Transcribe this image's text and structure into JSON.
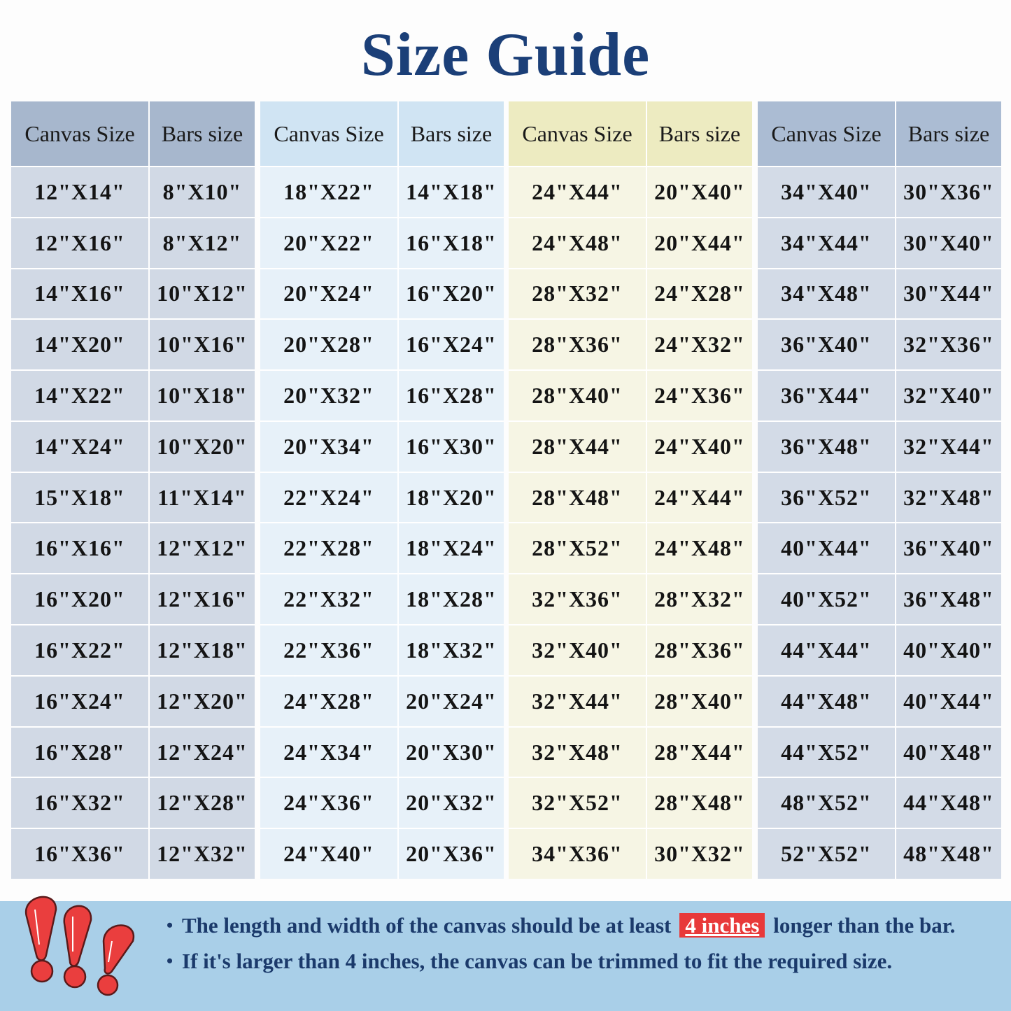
{
  "title": "Size Guide",
  "tables": [
    {
      "headers": [
        "Canvas Size",
        "Bars size"
      ],
      "colors": {
        "header": "#a7b7cd",
        "cell": "#d1d9e5"
      },
      "rows": [
        [
          "12\"X14\"",
          "8\"X10\""
        ],
        [
          "12\"X16\"",
          "8\"X12\""
        ],
        [
          "14\"X16\"",
          "10\"X12\""
        ],
        [
          "14\"X20\"",
          "10\"X16\""
        ],
        [
          "14\"X22\"",
          "10\"X18\""
        ],
        [
          "14\"X24\"",
          "10\"X20\""
        ],
        [
          "15\"X18\"",
          "11\"X14\""
        ],
        [
          "16\"X16\"",
          "12\"X12\""
        ],
        [
          "16\"X20\"",
          "12\"X16\""
        ],
        [
          "16\"X22\"",
          "12\"X18\""
        ],
        [
          "16\"X24\"",
          "12\"X20\""
        ],
        [
          "16\"X28\"",
          "12\"X24\""
        ],
        [
          "16\"X32\"",
          "12\"X28\""
        ],
        [
          "16\"X36\"",
          "12\"X32\""
        ]
      ]
    },
    {
      "headers": [
        "Canvas Size",
        "Bars size"
      ],
      "colors": {
        "header": "#d0e4f3",
        "cell": "#e7f1f9"
      },
      "rows": [
        [
          "18\"X22\"",
          "14\"X18\""
        ],
        [
          "20\"X22\"",
          "16\"X18\""
        ],
        [
          "20\"X24\"",
          "16\"X20\""
        ],
        [
          "20\"X28\"",
          "16\"X24\""
        ],
        [
          "20\"X32\"",
          "16\"X28\""
        ],
        [
          "20\"X34\"",
          "16\"X30\""
        ],
        [
          "22\"X24\"",
          "18\"X20\""
        ],
        [
          "22\"X28\"",
          "18\"X24\""
        ],
        [
          "22\"X32\"",
          "18\"X28\""
        ],
        [
          "22\"X36\"",
          "18\"X32\""
        ],
        [
          "24\"X28\"",
          "20\"X24\""
        ],
        [
          "24\"X34\"",
          "20\"X30\""
        ],
        [
          "24\"X36\"",
          "20\"X32\""
        ],
        [
          "24\"X40\"",
          "20\"X36\""
        ]
      ]
    },
    {
      "headers": [
        "Canvas Size",
        "Bars size"
      ],
      "colors": {
        "header": "#edebc1",
        "cell": "#f6f5e4"
      },
      "rows": [
        [
          "24\"X44\"",
          "20\"X40\""
        ],
        [
          "24\"X48\"",
          "20\"X44\""
        ],
        [
          "28\"X32\"",
          "24\"X28\""
        ],
        [
          "28\"X36\"",
          "24\"X32\""
        ],
        [
          "28\"X40\"",
          "24\"X36\""
        ],
        [
          "28\"X44\"",
          "24\"X40\""
        ],
        [
          "28\"X48\"",
          "24\"X44\""
        ],
        [
          "28\"X52\"",
          "24\"X48\""
        ],
        [
          "32\"X36\"",
          "28\"X32\""
        ],
        [
          "32\"X40\"",
          "28\"X36\""
        ],
        [
          "32\"X44\"",
          "28\"X40\""
        ],
        [
          "32\"X48\"",
          "28\"X44\""
        ],
        [
          "32\"X52\"",
          "28\"X48\""
        ],
        [
          "34\"X36\"",
          "30\"X32\""
        ]
      ]
    },
    {
      "headers": [
        "Canvas Size",
        "Bars size"
      ],
      "colors": {
        "header": "#abbcd3",
        "cell": "#d3dbe7"
      },
      "rows": [
        [
          "34\"X40\"",
          "30\"X36\""
        ],
        [
          "34\"X44\"",
          "30\"X40\""
        ],
        [
          "34\"X48\"",
          "30\"X44\""
        ],
        [
          "36\"X40\"",
          "32\"X36\""
        ],
        [
          "36\"X44\"",
          "32\"X40\""
        ],
        [
          "36\"X48\"",
          "32\"X44\""
        ],
        [
          "36\"X52\"",
          "32\"X48\""
        ],
        [
          "40\"X44\"",
          "36\"X40\""
        ],
        [
          "40\"X52\"",
          "36\"X48\""
        ],
        [
          "44\"X44\"",
          "40\"X40\""
        ],
        [
          "44\"X48\"",
          "40\"X44\""
        ],
        [
          "44\"X52\"",
          "40\"X48\""
        ],
        [
          "48\"X52\"",
          "44\"X48\""
        ],
        [
          "52\"X52\"",
          "48\"X48\""
        ]
      ]
    }
  ],
  "notes": {
    "note1_before": "The length and width of the canvas should be at least",
    "note1_highlight": "4 inches",
    "note1_after": "longer than the bar.",
    "note2": "If it's larger than 4 inches, the canvas can be trimmed to fit the required size."
  },
  "icon": "exclamation-marks-icon",
  "colors": {
    "title": "#1b3f78",
    "band": "#a9cfe8",
    "highlight": "#e8393a"
  }
}
